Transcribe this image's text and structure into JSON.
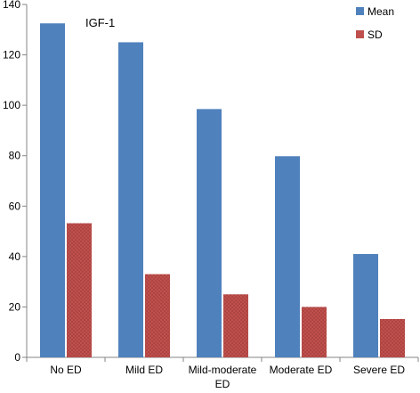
{
  "chart_data": {
    "type": "bar",
    "title": "IGF-1",
    "xlabel": "",
    "ylabel": "",
    "categories": [
      "No ED",
      "Mild ED",
      "Mild-moderate ED",
      "Moderate ED",
      "Severe ED"
    ],
    "category_lines": [
      [
        "No ED"
      ],
      [
        "Mild ED"
      ],
      [
        "Mild-moderate",
        "ED"
      ],
      [
        "Moderate ED"
      ],
      [
        "Severe ED"
      ]
    ],
    "series": [
      {
        "name": "Mean",
        "values": [
          132.5,
          125,
          98.5,
          79.8,
          41
        ]
      },
      {
        "name": "SD",
        "values": [
          53.2,
          33,
          25,
          20,
          15.2
        ]
      }
    ],
    "ylim": [
      0,
      140
    ],
    "yticks": [
      0,
      20,
      40,
      60,
      80,
      100,
      120,
      140
    ],
    "grid": false,
    "legend_position": "top-right",
    "colors": {
      "Mean": "#4f81bd",
      "SD": "#c0504d"
    }
  }
}
